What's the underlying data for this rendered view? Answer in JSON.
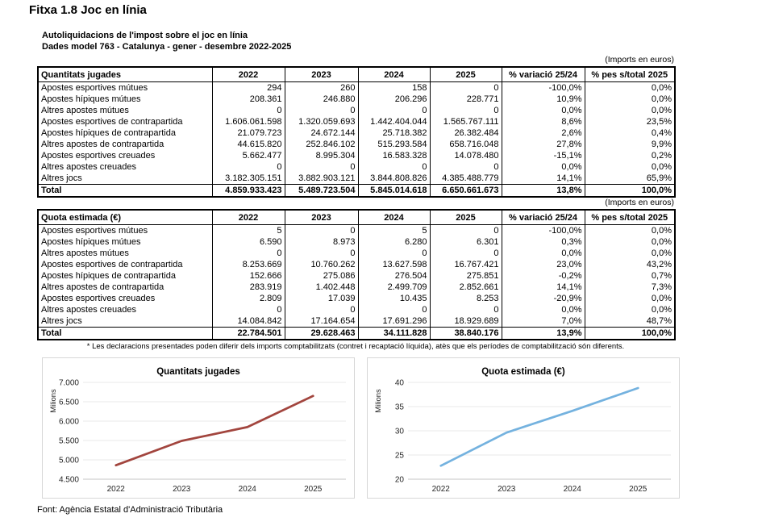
{
  "page": {
    "title": "Fitxa 1.8 Joc en línia",
    "subtitle1": "Autoliquidacions de l'impost sobre el joc en línia",
    "subtitle2": "Dades model 763 - Catalunya -  gener - desembre 2022-2025",
    "imports_label": "(Imports en euros)",
    "footnote": "* Les declaracions presentades poden diferir dels imports comptabilitzats (contret i recaptació líquida), atès que els períodes de comptabilització són diferents.",
    "source": "Font: Agència Estatal d'Administració Tributària"
  },
  "tables": [
    {
      "header": [
        "Quantitats jugades",
        "2022",
        "2023",
        "2024",
        "2025",
        "% variació 25/24",
        "% pes s/total 2025"
      ],
      "rows": [
        [
          "Apostes esportives mútues",
          "294",
          "260",
          "158",
          "0",
          "-100,0%",
          "0,0%"
        ],
        [
          "Apostes hípiques mútues",
          "208.361",
          "246.880",
          "206.296",
          "228.771",
          "10,9%",
          "0,0%"
        ],
        [
          "Altres apostes mútues",
          "0",
          "0",
          "0",
          "0",
          "0,0%",
          "0,0%"
        ],
        [
          "Apostes esportives de contrapartida",
          "1.606.061.598",
          "1.320.059.693",
          "1.442.404.044",
          "1.565.767.111",
          "8,6%",
          "23,5%"
        ],
        [
          "Apostes hípiques de contrapartida",
          "21.079.723",
          "24.672.144",
          "25.718.382",
          "26.382.484",
          "2,6%",
          "0,4%"
        ],
        [
          "Altres apostes de contrapartida",
          "44.615.820",
          "252.846.102",
          "515.293.584",
          "658.716.048",
          "27,8%",
          "9,9%"
        ],
        [
          "Apostes esportives creuades",
          "5.662.477",
          "8.995.304",
          "16.583.328",
          "14.078.480",
          "-15,1%",
          "0,2%"
        ],
        [
          "Altres apostes creuades",
          "0",
          "0",
          "0",
          "0",
          "0,0%",
          "0,0%"
        ],
        [
          "Altres jocs",
          "3.182.305.151",
          "3.882.903.121",
          "3.844.808.826",
          "4.385.488.779",
          "14,1%",
          "65,9%"
        ]
      ],
      "total": [
        "Total",
        "4.859.933.423",
        "5.489.723.504",
        "5.845.014.618",
        "6.650.661.673",
        "13,8%",
        "100,0%"
      ]
    },
    {
      "header": [
        "Quota estimada (€)",
        "2022",
        "2023",
        "2024",
        "2025",
        "% variació 25/24",
        "% pes s/total 2025"
      ],
      "rows": [
        [
          "Apostes esportives mútues",
          "5",
          "0",
          "5",
          "0",
          "-100,0%",
          "0,0%"
        ],
        [
          "Apostes hípiques mútues",
          "6.590",
          "8.973",
          "6.280",
          "6.301",
          "0,3%",
          "0,0%"
        ],
        [
          "Altres apostes mútues",
          "0",
          "0",
          "0",
          "0",
          "0,0%",
          "0,0%"
        ],
        [
          "Apostes esportives de contrapartida",
          "8.253.669",
          "10.760.262",
          "13.627.598",
          "16.767.421",
          "23,0%",
          "43,2%"
        ],
        [
          "Apostes hípiques de contrapartida",
          "152.666",
          "275.086",
          "276.504",
          "275.851",
          "-0,2%",
          "0,7%"
        ],
        [
          "Altres apostes de contrapartida",
          "283.919",
          "1.402.448",
          "2.499.709",
          "2.852.661",
          "14,1%",
          "7,3%"
        ],
        [
          "Apostes esportives creuades",
          "2.809",
          "17.039",
          "10.435",
          "8.253",
          "-20,9%",
          "0,0%"
        ],
        [
          "Altres apostes creuades",
          "0",
          "0",
          "0",
          "0",
          "0,0%",
          "0,0%"
        ],
        [
          "Altres jocs",
          "14.084.842",
          "17.164.654",
          "17.691.296",
          "18.929.689",
          "7,0%",
          "48,7%"
        ]
      ],
      "total": [
        "Total",
        "22.784.501",
        "29.628.463",
        "34.111.828",
        "38.840.176",
        "13,9%",
        "100,0%"
      ]
    }
  ],
  "chart_data": [
    {
      "type": "line",
      "title": "Quantitats jugades",
      "ylabel": "Milions",
      "categories": [
        "2022",
        "2023",
        "2024",
        "2025"
      ],
      "values": [
        4859.9,
        5489.7,
        5845.0,
        6650.7
      ],
      "ylim": [
        4500,
        7000
      ],
      "yticks": [
        4500,
        5000,
        5500,
        6000,
        6500,
        7000
      ],
      "ytick_labels": [
        "4.500",
        "5.000",
        "5.500",
        "6.000",
        "6.500",
        "7.000"
      ],
      "line_color": "#A2453E",
      "grid": true,
      "legend": "none"
    },
    {
      "type": "line",
      "title": "Quota estimada (€)",
      "ylabel": "Milions",
      "categories": [
        "2022",
        "2023",
        "2024",
        "2025"
      ],
      "values": [
        22.78,
        29.63,
        34.11,
        38.84
      ],
      "ylim": [
        20,
        40
      ],
      "yticks": [
        20,
        25,
        30,
        35,
        40
      ],
      "ytick_labels": [
        "20",
        "25",
        "30",
        "35",
        "40"
      ],
      "line_color": "#74B2DF",
      "grid": true,
      "legend": "none"
    }
  ],
  "style": {
    "grid_color": "#E8E8E8",
    "axis_color": "#C6C6C6",
    "axis_text_color": "#262626"
  }
}
